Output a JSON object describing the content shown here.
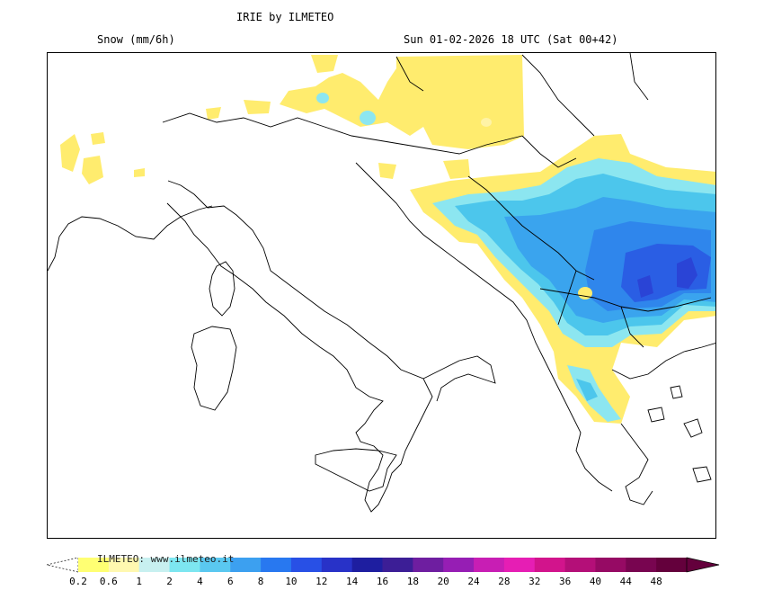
{
  "header": {
    "title": "IRIE by ILMETEO",
    "variable": "Snow (mm/6h)",
    "validity": "Sun 01-02-2026 18 UTC (Sat 00+42)"
  },
  "legend": {
    "credit": "ILMETEO: www.ilmeteo.it",
    "ticks": [
      "0.2",
      "0.6",
      "1",
      "2",
      "4",
      "6",
      "8",
      "10",
      "12",
      "14",
      "16",
      "18",
      "20",
      "24",
      "28",
      "32",
      "36",
      "40",
      "44",
      "48"
    ],
    "colors": [
      "#ffff73",
      "#fff8b0",
      "#c8f0f0",
      "#7de6f0",
      "#5ac8f0",
      "#3ca0f0",
      "#2878f0",
      "#2850e6",
      "#2832c8",
      "#1e1ea0",
      "#3c1e96",
      "#6e1ea0",
      "#961eb4",
      "#c81eb4",
      "#e61eb4",
      "#d2148c",
      "#b40f78",
      "#960a64",
      "#780550",
      "#64003c"
    ],
    "under_color": "#ffffff",
    "over_color": "#64003c"
  },
  "map": {
    "region": "Italy and the Balkans",
    "colors": {
      "coast": "#000000",
      "snow_light": "#ffec6e",
      "snow_pale": "#fff3a6",
      "snow_cyan_light": "#8ce6f0",
      "snow_cyan": "#4cc6ec",
      "snow_blue": "#3aa4ee",
      "snow_blue_mid": "#2f86ec",
      "snow_blue_dark": "#2a5ee4",
      "snow_blue_deep": "#2a44d6"
    }
  }
}
